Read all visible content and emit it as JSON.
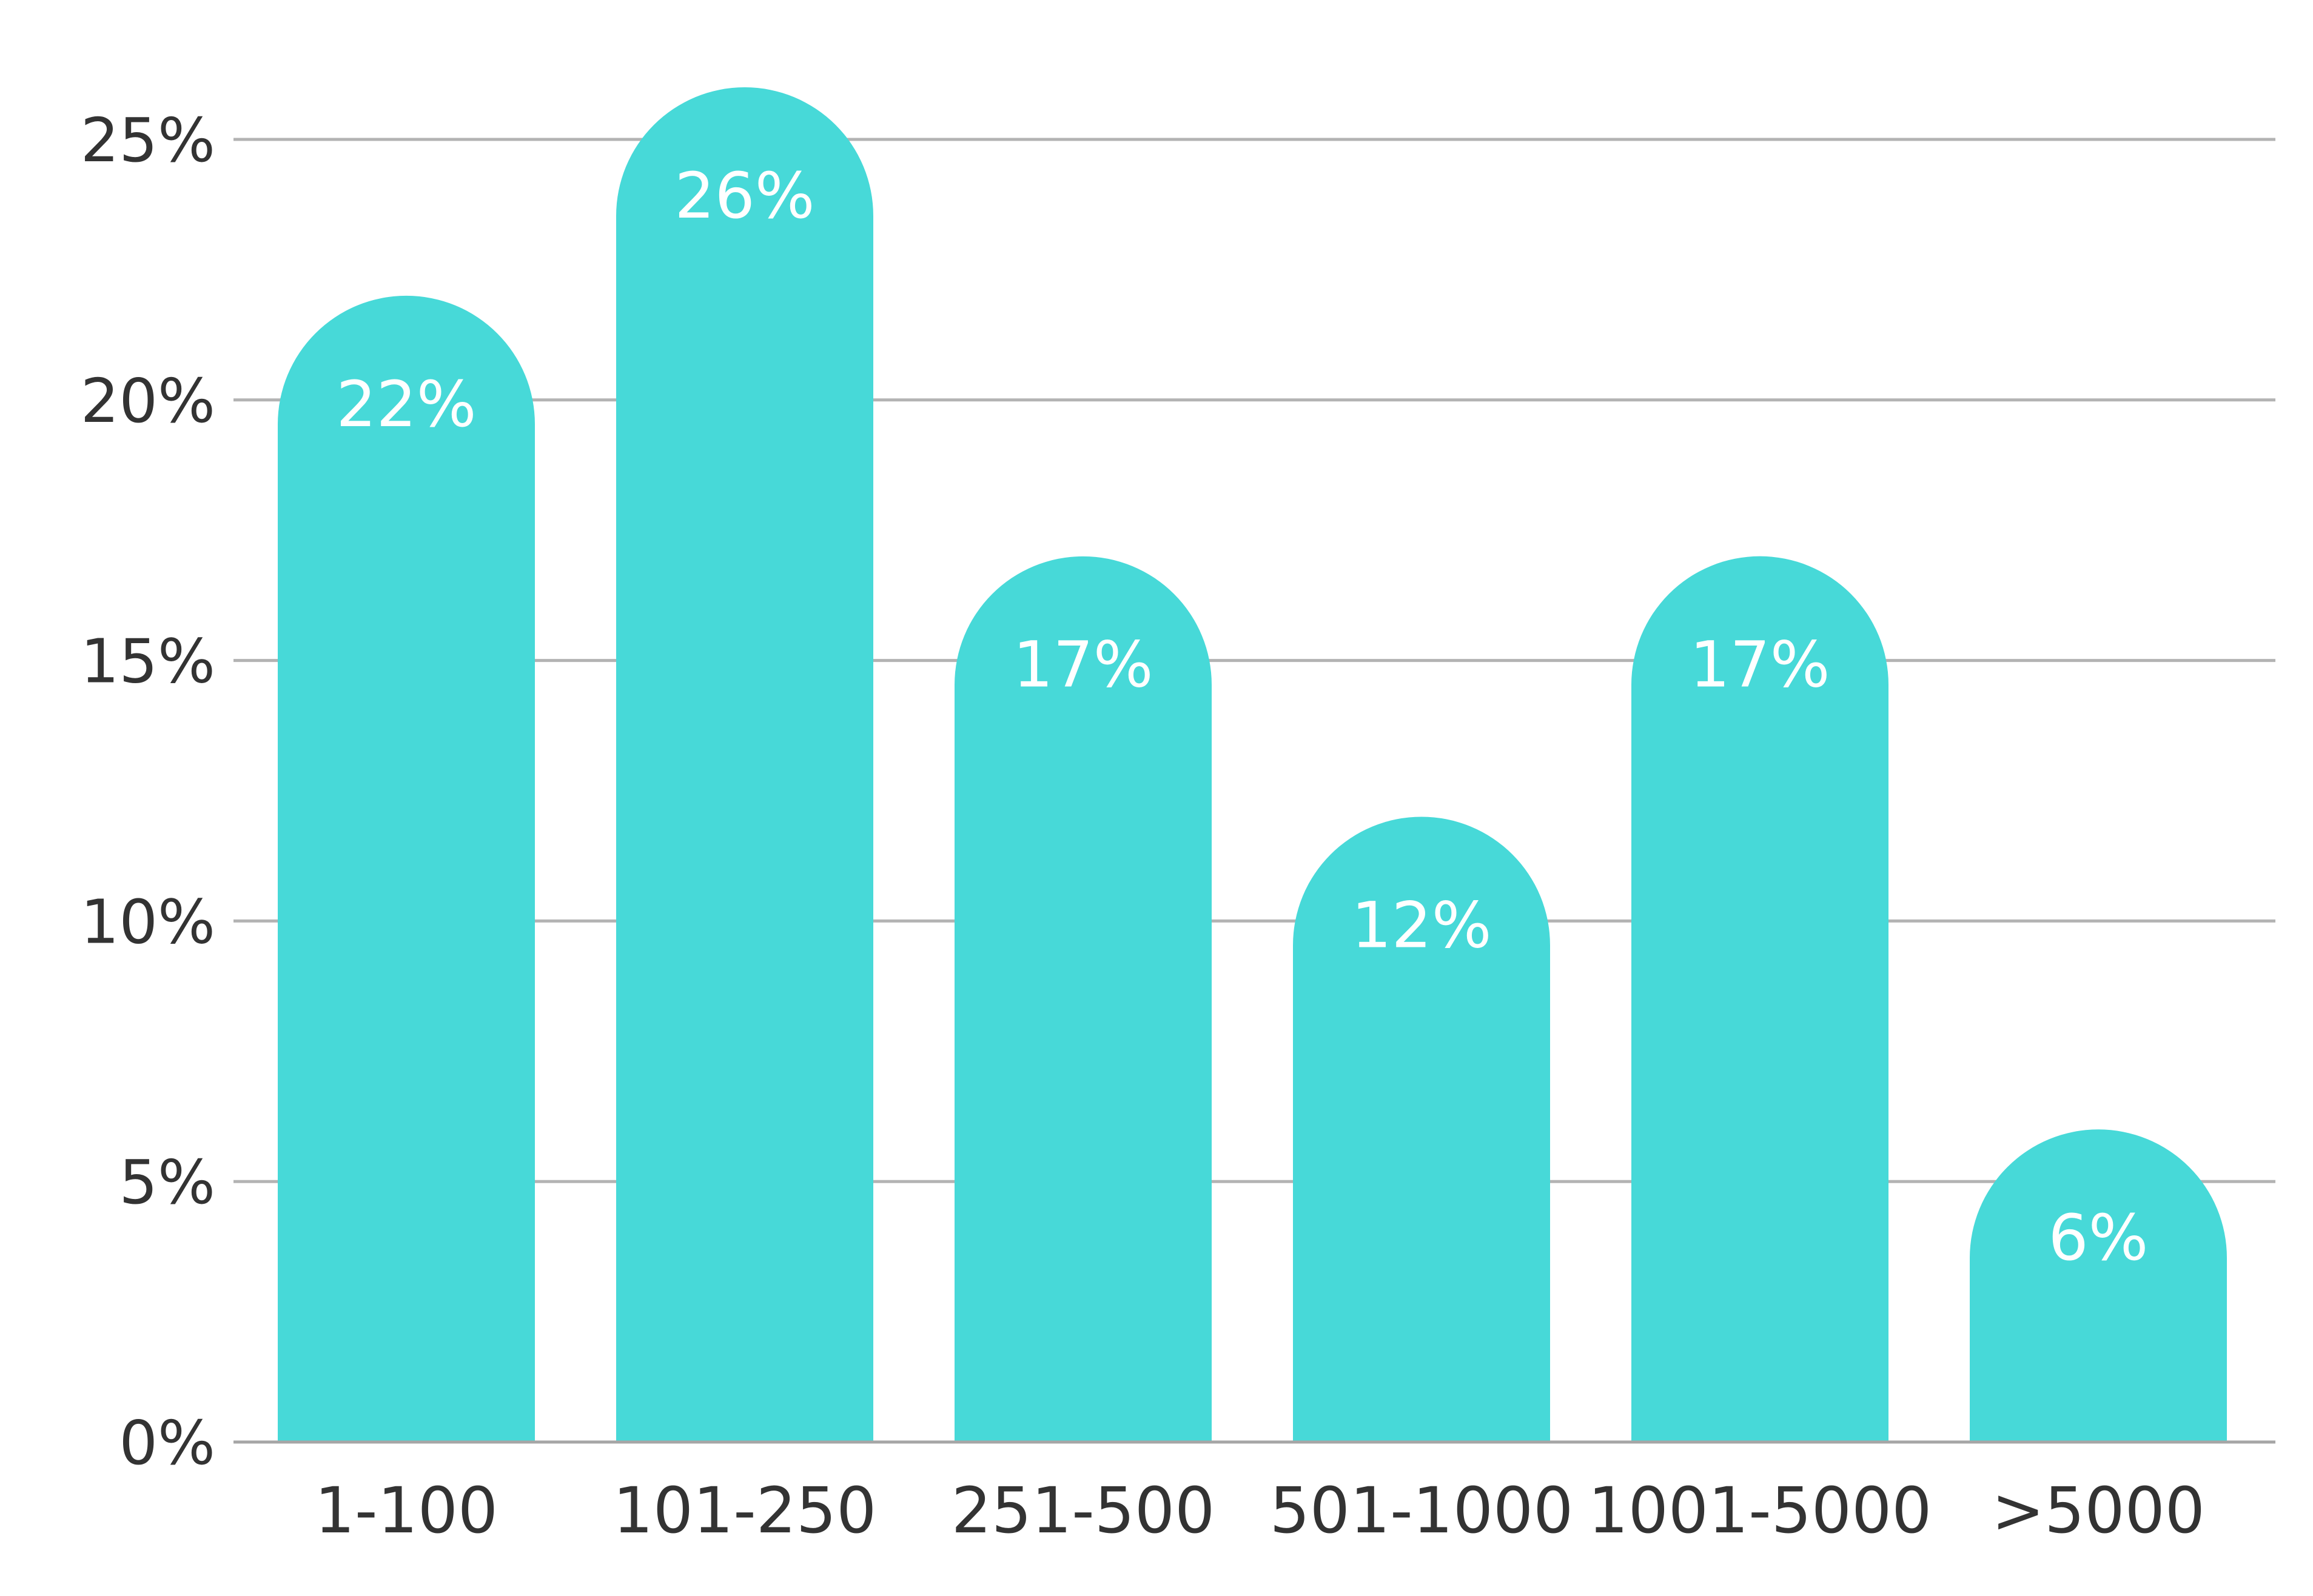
{
  "chart_data": {
    "type": "bar",
    "title": "",
    "xlabel": "",
    "ylabel": "",
    "categories": [
      "1-100",
      "101-250",
      "251-500",
      "501-1000",
      "1001-5000",
      ">5000"
    ],
    "values": [
      22,
      26,
      17,
      12,
      17,
      6
    ],
    "data_labels": [
      "22%",
      "26%",
      "17%",
      "12%",
      "17%",
      "6%"
    ],
    "ylim": [
      0,
      25
    ],
    "yticks": [
      0,
      5,
      10,
      15,
      20,
      25
    ],
    "ytick_labels": [
      "0%",
      "5%",
      "10%",
      "15%",
      "20%",
      "25%"
    ],
    "grid": true,
    "legend": "none",
    "bar_color": "#47d9d8",
    "label_color": "#ffffff",
    "tick_color": "#333333",
    "grid_color": "#b3b3b3"
  }
}
